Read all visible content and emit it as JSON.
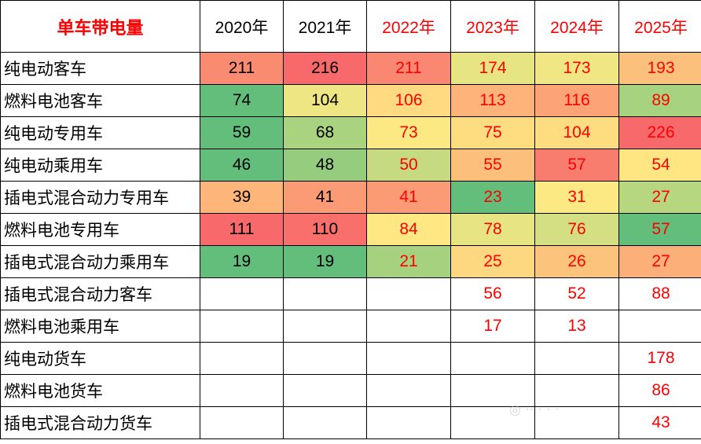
{
  "chart_data": {
    "type": "table",
    "title": "单车带电量",
    "columns": [
      "2020年",
      "2021年",
      "2022年",
      "2023年",
      "2024年",
      "2025年"
    ],
    "rows": [
      {
        "label": "纯电动客车",
        "values": [
          211,
          216,
          211,
          174,
          173,
          193
        ]
      },
      {
        "label": "燃料电池客车",
        "values": [
          74,
          104,
          106,
          113,
          116,
          89
        ]
      },
      {
        "label": "纯电动专用车",
        "values": [
          59,
          68,
          73,
          75,
          104,
          226
        ]
      },
      {
        "label": "纯电动乘用车",
        "values": [
          46,
          48,
          50,
          55,
          57,
          54
        ]
      },
      {
        "label": "插电式混合动力专用车",
        "values": [
          39,
          41,
          41,
          23,
          31,
          27
        ]
      },
      {
        "label": "燃料电池专用车",
        "values": [
          111,
          110,
          84,
          78,
          76,
          57
        ]
      },
      {
        "label": "插电式混合动力乘用车",
        "values": [
          19,
          19,
          21,
          25,
          26,
          27
        ]
      },
      {
        "label": "插电式混合动力客车",
        "values": [
          null,
          null,
          null,
          56,
          52,
          88
        ]
      },
      {
        "label": "燃料电池乘用车",
        "values": [
          null,
          null,
          null,
          17,
          13,
          null
        ]
      },
      {
        "label": "纯电动货车",
        "values": [
          null,
          null,
          null,
          null,
          null,
          178
        ]
      },
      {
        "label": "燃料电池货车",
        "values": [
          null,
          null,
          null,
          null,
          null,
          86
        ]
      },
      {
        "label": "插电式混合动力货车",
        "values": [
          null,
          null,
          null,
          null,
          null,
          43
        ]
      }
    ],
    "heatmap_colors": {
      "high": "#f8696b",
      "mid": "#ffeb84",
      "low": "#63be7b",
      "value_text_black": "#000000",
      "value_text_red": "#ff0000"
    },
    "red_text_from_column_index": 2,
    "heatmap_rows_count": 7,
    "cell_fills": [
      [
        "#f98b71",
        "#f8696b",
        "#f98771",
        "#e7e483",
        "#f1e684",
        "#fbc17c"
      ],
      [
        "#63be7b",
        "#eee583",
        "#ffda81",
        "#fdb37a",
        "#fca377",
        "#a7d27f"
      ],
      [
        "#63be7b",
        "#aad380",
        "#fde983",
        "#fedd81",
        "#fedd81",
        "#f8696b"
      ],
      [
        "#63be7b",
        "#96cc7e",
        "#c6da81",
        "#fdc07c",
        "#f97d6f",
        "#ffe683"
      ],
      [
        "#fdb57a",
        "#fa9b75",
        "#fa9b75",
        "#63be7b",
        "#fde983",
        "#b7d680"
      ],
      [
        "#f8696b",
        "#f86f6c",
        "#ffe884",
        "#e6e483",
        "#d3df82",
        "#63be7b"
      ],
      [
        "#63be7b",
        "#63be7b",
        "#a6d27f",
        "#fed880",
        "#fcc37c",
        "#fcaf79"
      ]
    ]
  }
}
